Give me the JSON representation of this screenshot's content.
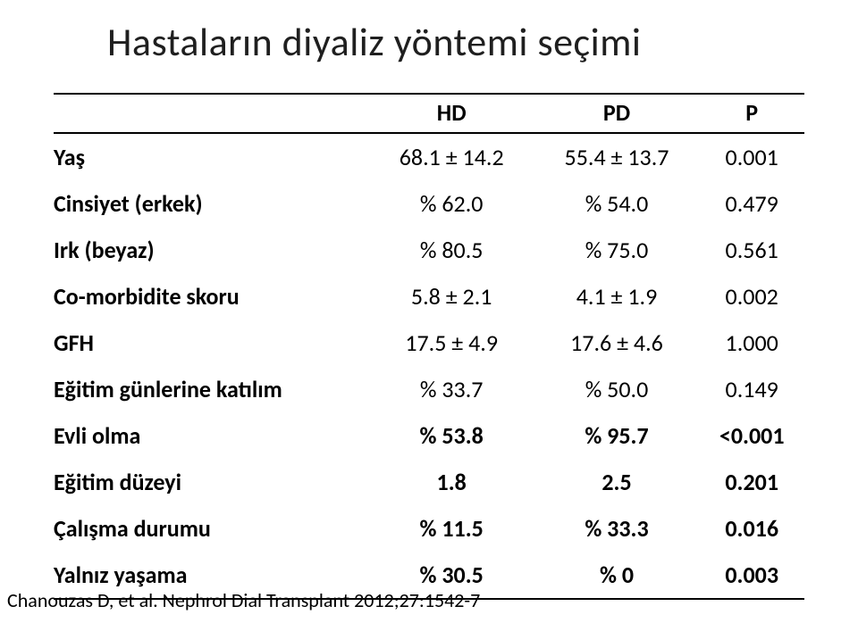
{
  "title": "Hastaların diyaliz yöntemi seçimi",
  "columns": [
    "HD",
    "PD",
    "P"
  ],
  "rows": [
    {
      "label": "Yaş",
      "hd": "68.1 ± 14.2",
      "pd": "55.4 ± 13.7",
      "p": "0.001",
      "bold": false
    },
    {
      "label": "Cinsiyet (erkek)",
      "hd": "% 62.0",
      "pd": "% 54.0",
      "p": "0.479",
      "bold": false
    },
    {
      "label": "Irk (beyaz)",
      "hd": "% 80.5",
      "pd": "% 75.0",
      "p": "0.561",
      "bold": false
    },
    {
      "label": "Co-morbidite skoru",
      "hd": "5.8 ± 2.1",
      "pd": "4.1 ± 1.9",
      "p": "0.002",
      "bold": false
    },
    {
      "label": "GFH",
      "hd": "17.5 ± 4.9",
      "pd": "17.6 ± 4.6",
      "p": "1.000",
      "bold": false
    },
    {
      "label": "Eğitim günlerine katılım",
      "hd": "% 33.7",
      "pd": "% 50.0",
      "p": "0.149",
      "bold": false
    },
    {
      "label": "Evli olma",
      "hd": "% 53.8",
      "pd": "% 95.7",
      "p": "<0.001",
      "bold": true
    },
    {
      "label": "Eğitim düzeyi",
      "hd": "1.8",
      "pd": "2.5",
      "p": "0.201",
      "bold": true
    },
    {
      "label": "Çalışma durumu",
      "hd": "% 11.5",
      "pd": "% 33.3",
      "p": "0.016",
      "bold": true
    },
    {
      "label": "Yalnız yaşama",
      "hd": "% 30.5",
      "pd": "% 0",
      "p": "0.003",
      "bold": true
    }
  ],
  "citation": "Chanouzas D, et al. Nephrol Dial Transplant 2012;27:1542-7",
  "style": {
    "title_fontsize": 44,
    "title_color": "#1f1f1f",
    "table_fontsize": 26,
    "border_color": "#000000",
    "background_color": "#ffffff",
    "text_color": "#000000",
    "citation_fontsize": 22
  }
}
